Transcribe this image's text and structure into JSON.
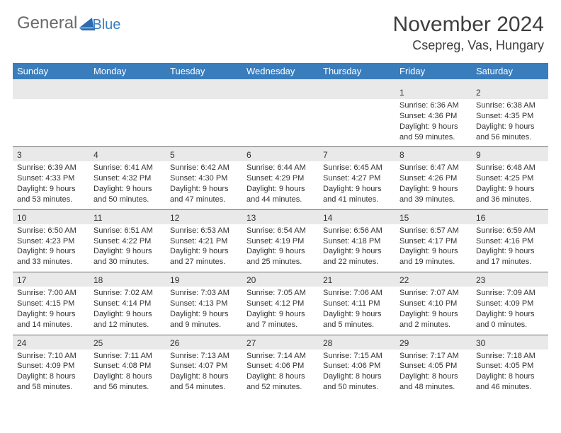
{
  "logo": {
    "textA": "General",
    "textB": "Blue"
  },
  "title": "November 2024",
  "location": "Csepreg, Vas, Hungary",
  "colors": {
    "header_bg": "#3a7dbd",
    "header_text": "#ffffff",
    "date_row_bg": "#e9e9e9",
    "border": "#6a6a6a",
    "body_text": "#323232",
    "logo_gray": "#6a6a6a",
    "logo_blue": "#367ec0",
    "page_bg": "#ffffff"
  },
  "day_headers": [
    "Sunday",
    "Monday",
    "Tuesday",
    "Wednesday",
    "Thursday",
    "Friday",
    "Saturday"
  ],
  "weeks": [
    [
      {
        "date": "",
        "lines": [
          "",
          "",
          "",
          ""
        ]
      },
      {
        "date": "",
        "lines": [
          "",
          "",
          "",
          ""
        ]
      },
      {
        "date": "",
        "lines": [
          "",
          "",
          "",
          ""
        ]
      },
      {
        "date": "",
        "lines": [
          "",
          "",
          "",
          ""
        ]
      },
      {
        "date": "",
        "lines": [
          "",
          "",
          "",
          ""
        ]
      },
      {
        "date": "1",
        "lines": [
          "Sunrise: 6:36 AM",
          "Sunset: 4:36 PM",
          "Daylight: 9 hours",
          "and 59 minutes."
        ]
      },
      {
        "date": "2",
        "lines": [
          "Sunrise: 6:38 AM",
          "Sunset: 4:35 PM",
          "Daylight: 9 hours",
          "and 56 minutes."
        ]
      }
    ],
    [
      {
        "date": "3",
        "lines": [
          "Sunrise: 6:39 AM",
          "Sunset: 4:33 PM",
          "Daylight: 9 hours",
          "and 53 minutes."
        ]
      },
      {
        "date": "4",
        "lines": [
          "Sunrise: 6:41 AM",
          "Sunset: 4:32 PM",
          "Daylight: 9 hours",
          "and 50 minutes."
        ]
      },
      {
        "date": "5",
        "lines": [
          "Sunrise: 6:42 AM",
          "Sunset: 4:30 PM",
          "Daylight: 9 hours",
          "and 47 minutes."
        ]
      },
      {
        "date": "6",
        "lines": [
          "Sunrise: 6:44 AM",
          "Sunset: 4:29 PM",
          "Daylight: 9 hours",
          "and 44 minutes."
        ]
      },
      {
        "date": "7",
        "lines": [
          "Sunrise: 6:45 AM",
          "Sunset: 4:27 PM",
          "Daylight: 9 hours",
          "and 41 minutes."
        ]
      },
      {
        "date": "8",
        "lines": [
          "Sunrise: 6:47 AM",
          "Sunset: 4:26 PM",
          "Daylight: 9 hours",
          "and 39 minutes."
        ]
      },
      {
        "date": "9",
        "lines": [
          "Sunrise: 6:48 AM",
          "Sunset: 4:25 PM",
          "Daylight: 9 hours",
          "and 36 minutes."
        ]
      }
    ],
    [
      {
        "date": "10",
        "lines": [
          "Sunrise: 6:50 AM",
          "Sunset: 4:23 PM",
          "Daylight: 9 hours",
          "and 33 minutes."
        ]
      },
      {
        "date": "11",
        "lines": [
          "Sunrise: 6:51 AM",
          "Sunset: 4:22 PM",
          "Daylight: 9 hours",
          "and 30 minutes."
        ]
      },
      {
        "date": "12",
        "lines": [
          "Sunrise: 6:53 AM",
          "Sunset: 4:21 PM",
          "Daylight: 9 hours",
          "and 27 minutes."
        ]
      },
      {
        "date": "13",
        "lines": [
          "Sunrise: 6:54 AM",
          "Sunset: 4:19 PM",
          "Daylight: 9 hours",
          "and 25 minutes."
        ]
      },
      {
        "date": "14",
        "lines": [
          "Sunrise: 6:56 AM",
          "Sunset: 4:18 PM",
          "Daylight: 9 hours",
          "and 22 minutes."
        ]
      },
      {
        "date": "15",
        "lines": [
          "Sunrise: 6:57 AM",
          "Sunset: 4:17 PM",
          "Daylight: 9 hours",
          "and 19 minutes."
        ]
      },
      {
        "date": "16",
        "lines": [
          "Sunrise: 6:59 AM",
          "Sunset: 4:16 PM",
          "Daylight: 9 hours",
          "and 17 minutes."
        ]
      }
    ],
    [
      {
        "date": "17",
        "lines": [
          "Sunrise: 7:00 AM",
          "Sunset: 4:15 PM",
          "Daylight: 9 hours",
          "and 14 minutes."
        ]
      },
      {
        "date": "18",
        "lines": [
          "Sunrise: 7:02 AM",
          "Sunset: 4:14 PM",
          "Daylight: 9 hours",
          "and 12 minutes."
        ]
      },
      {
        "date": "19",
        "lines": [
          "Sunrise: 7:03 AM",
          "Sunset: 4:13 PM",
          "Daylight: 9 hours",
          "and 9 minutes."
        ]
      },
      {
        "date": "20",
        "lines": [
          "Sunrise: 7:05 AM",
          "Sunset: 4:12 PM",
          "Daylight: 9 hours",
          "and 7 minutes."
        ]
      },
      {
        "date": "21",
        "lines": [
          "Sunrise: 7:06 AM",
          "Sunset: 4:11 PM",
          "Daylight: 9 hours",
          "and 5 minutes."
        ]
      },
      {
        "date": "22",
        "lines": [
          "Sunrise: 7:07 AM",
          "Sunset: 4:10 PM",
          "Daylight: 9 hours",
          "and 2 minutes."
        ]
      },
      {
        "date": "23",
        "lines": [
          "Sunrise: 7:09 AM",
          "Sunset: 4:09 PM",
          "Daylight: 9 hours",
          "and 0 minutes."
        ]
      }
    ],
    [
      {
        "date": "24",
        "lines": [
          "Sunrise: 7:10 AM",
          "Sunset: 4:09 PM",
          "Daylight: 8 hours",
          "and 58 minutes."
        ]
      },
      {
        "date": "25",
        "lines": [
          "Sunrise: 7:11 AM",
          "Sunset: 4:08 PM",
          "Daylight: 8 hours",
          "and 56 minutes."
        ]
      },
      {
        "date": "26",
        "lines": [
          "Sunrise: 7:13 AM",
          "Sunset: 4:07 PM",
          "Daylight: 8 hours",
          "and 54 minutes."
        ]
      },
      {
        "date": "27",
        "lines": [
          "Sunrise: 7:14 AM",
          "Sunset: 4:06 PM",
          "Daylight: 8 hours",
          "and 52 minutes."
        ]
      },
      {
        "date": "28",
        "lines": [
          "Sunrise: 7:15 AM",
          "Sunset: 4:06 PM",
          "Daylight: 8 hours",
          "and 50 minutes."
        ]
      },
      {
        "date": "29",
        "lines": [
          "Sunrise: 7:17 AM",
          "Sunset: 4:05 PM",
          "Daylight: 8 hours",
          "and 48 minutes."
        ]
      },
      {
        "date": "30",
        "lines": [
          "Sunrise: 7:18 AM",
          "Sunset: 4:05 PM",
          "Daylight: 8 hours",
          "and 46 minutes."
        ]
      }
    ]
  ]
}
